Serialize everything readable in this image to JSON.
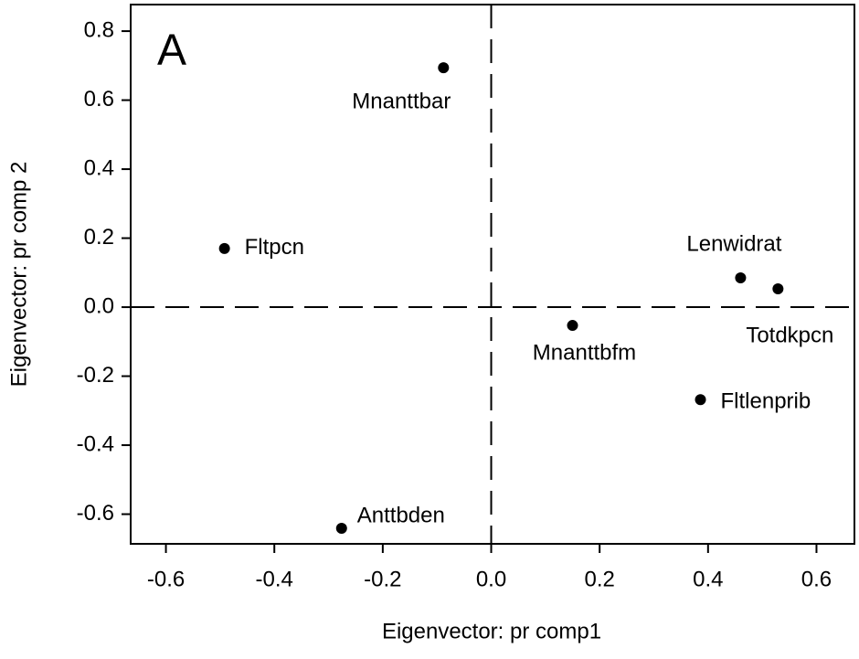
{
  "chart_data": {
    "type": "scatter",
    "annotation": "A",
    "xlabel": "Eigenvector: pr comp1",
    "ylabel": "Eigenvector: pr comp 2",
    "labels": [
      "Mnanttbar",
      "Fltpcn",
      "Lenwidrat",
      "Totdkpcn",
      "Mnanttbfm",
      "Fltlenprib",
      "Anttbden"
    ],
    "x": [
      -0.088,
      -0.492,
      0.46,
      0.529,
      0.15,
      0.386,
      -0.276
    ],
    "values": [
      0.694,
      0.17,
      0.085,
      0.053,
      -0.053,
      -0.268,
      -0.641
    ],
    "color": "#000000",
    "xlim": [
      -0.665,
      0.67
    ],
    "ylim": [
      -0.686,
      0.877
    ],
    "xticks": [
      -0.6,
      -0.4,
      -0.2,
      {
        "value": 0,
        "label": "0.0"
      },
      0.2,
      0.4,
      0.6
    ],
    "yticks": [
      0.8,
      0.6,
      0.4,
      0.2,
      {
        "value": 0,
        "label": "0.0"
      },
      -0.2,
      -0.4,
      -0.6
    ],
    "reference_lines": {
      "x": 0,
      "y": 0
    }
  }
}
